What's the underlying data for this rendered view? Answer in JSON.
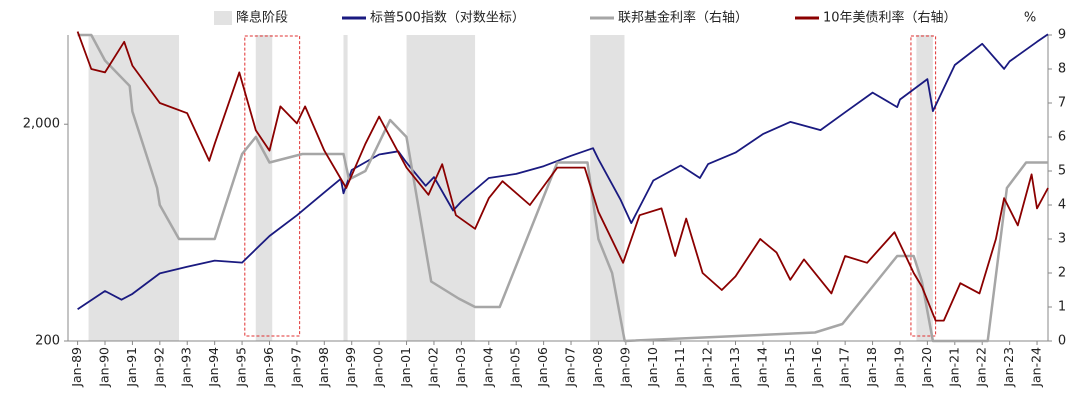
{
  "chart_data": {
    "type": "line",
    "xlim": [
      1988.65,
      2024.4
    ],
    "xticks": [
      {
        "value": 1989,
        "label": "Jan-89"
      },
      {
        "value": 1990,
        "label": "Jan-90"
      },
      {
        "value": 1991,
        "label": "Jan-91"
      },
      {
        "value": 1992,
        "label": "Jan-92"
      },
      {
        "value": 1993,
        "label": "Jan-93"
      },
      {
        "value": 1994,
        "label": "Jan-94"
      },
      {
        "value": 1995,
        "label": "Jan-95"
      },
      {
        "value": 1996,
        "label": "Jan-96"
      },
      {
        "value": 1997,
        "label": "Jan-97"
      },
      {
        "value": 1998,
        "label": "Jan-98"
      },
      {
        "value": 1999,
        "label": "Jan-99"
      },
      {
        "value": 2000,
        "label": "Jan-00"
      },
      {
        "value": 2001,
        "label": "Jan-01"
      },
      {
        "value": 2002,
        "label": "Jan-02"
      },
      {
        "value": 2003,
        "label": "Jan-03"
      },
      {
        "value": 2004,
        "label": "Jan-04"
      },
      {
        "value": 2005,
        "label": "Jan-05"
      },
      {
        "value": 2006,
        "label": "Jan-06"
      },
      {
        "value": 2007,
        "label": "Jan-07"
      },
      {
        "value": 2008,
        "label": "Jan-08"
      },
      {
        "value": 2009,
        "label": "Jan-09"
      },
      {
        "value": 2010,
        "label": "Jan-10"
      },
      {
        "value": 2011,
        "label": "Jan-11"
      },
      {
        "value": 2012,
        "label": "Jan-12"
      },
      {
        "value": 2013,
        "label": "Jan-13"
      },
      {
        "value": 2014,
        "label": "Jan-14"
      },
      {
        "value": 2015,
        "label": "Jan-15"
      },
      {
        "value": 2016,
        "label": "Jan-16"
      },
      {
        "value": 2017,
        "label": "Jan-17"
      },
      {
        "value": 2018,
        "label": "Jan-18"
      },
      {
        "value": 2019,
        "label": "Jan-19"
      },
      {
        "value": 2020,
        "label": "Jan-20"
      },
      {
        "value": 2021,
        "label": "Jan-21"
      },
      {
        "value": 2022,
        "label": "Jan-22"
      },
      {
        "value": 2023,
        "label": "Jan-23"
      },
      {
        "value": 2024,
        "label": "Jan-24"
      }
    ],
    "ylim": [
      200,
      5160
    ],
    "log_y": true,
    "yticks": [
      200,
      {
        "value": 2000,
        "label": "2,000"
      }
    ],
    "y2lim": [
      0,
      9
    ],
    "y2ticks": [
      0,
      1,
      2,
      3,
      4,
      5,
      6,
      7,
      8,
      9
    ],
    "y2_unit": "%",
    "legend_position": "top",
    "shaded": {
      "name": "降息阶段",
      "color": "#e2e2e2",
      "periods": [
        [
          1989.4,
          1992.7
        ],
        [
          1995.5,
          1996.1
        ],
        [
          1998.7,
          1998.85
        ],
        [
          2001.0,
          2003.5
        ],
        [
          2007.7,
          2008.95
        ],
        [
          2019.6,
          2020.2
        ]
      ]
    },
    "highlight_boxes": {
      "color": "#e03030",
      "periods": [
        [
          1995.1,
          1997.1
        ],
        [
          2019.4,
          2020.3
        ]
      ]
    },
    "series": [
      {
        "name": "标普500指数（对数坐标）",
        "color": "#1a1a80",
        "x": [
          1989.0,
          1990.0,
          1990.6,
          1991.0,
          1992.0,
          1993.0,
          1994.0,
          1995.0,
          1996.0,
          1997.0,
          1998.0,
          1998.6,
          1998.7,
          1999.0,
          2000.0,
          2000.7,
          2001.0,
          2001.7,
          2002.0,
          2002.7,
          2003.0,
          2004.0,
          2005.0,
          2006.0,
          2007.0,
          2007.8,
          2008.0,
          2008.8,
          2009.2,
          2010.0,
          2011.0,
          2011.7,
          2012.0,
          2013.0,
          2014.0,
          2015.0,
          2016.1,
          2017.0,
          2018.0,
          2018.9,
          2019.0,
          2020.0,
          2020.2,
          2021.0,
          2022.0,
          2022.8,
          2023.0,
          2024.0,
          2024.4
        ],
        "values": [
          280,
          340,
          310,
          330,
          410,
          440,
          470,
          460,
          610,
          760,
          970,
          1120,
          960,
          1230,
          1450,
          1500,
          1330,
          1040,
          1140,
          800,
          880,
          1130,
          1180,
          1280,
          1430,
          1550,
          1380,
          900,
          700,
          1100,
          1290,
          1130,
          1310,
          1480,
          1800,
          2050,
          1880,
          2270,
          2800,
          2400,
          2600,
          3230,
          2300,
          3750,
          4700,
          3600,
          3900,
          4800,
          5200
        ]
      },
      {
        "name": "联邦基金利率（右轴）",
        "color": "#a6a6a6",
        "axis": "y2",
        "x": [
          1989.0,
          1989.5,
          1990.0,
          1990.9,
          1991.0,
          1991.9,
          1992.0,
          1992.7,
          1994.0,
          1994.2,
          1995.0,
          1995.5,
          1996.0,
          1997.2,
          1998.7,
          1998.9,
          1999.5,
          2000.4,
          2001.0,
          2001.9,
          2002.9,
          2003.5,
          2004.4,
          2006.5,
          2007.6,
          2008.0,
          2008.5,
          2008.96,
          2015.9,
          2016.9,
          2017.9,
          2018.9,
          2019.5,
          2019.8,
          2020.2,
          2022.2,
          2022.9,
          2023.6,
          2024.4
        ],
        "values": [
          9.0,
          9.0,
          8.25,
          7.5,
          6.75,
          4.5,
          4.0,
          3.0,
          3.0,
          3.5,
          5.5,
          6.0,
          5.25,
          5.5,
          5.5,
          4.75,
          5.0,
          6.5,
          6.0,
          1.75,
          1.25,
          1.0,
          1.0,
          5.25,
          5.25,
          3.0,
          2.0,
          0,
          0.25,
          0.5,
          1.5,
          2.5,
          2.5,
          1.75,
          0,
          0,
          4.5,
          5.25,
          5.25
        ]
      },
      {
        "name": "10年美债利率（右轴）",
        "color": "#8b0000",
        "axis": "y2",
        "x": [
          1989.0,
          1989.5,
          1990.0,
          1990.7,
          1991.0,
          1992.0,
          1993.0,
          1993.8,
          1994.0,
          1994.9,
          1995.5,
          1996.0,
          1996.4,
          1997.0,
          1997.3,
          1998.0,
          1998.8,
          1999.5,
          2000.0,
          2001.0,
          2001.8,
          2002.3,
          2002.8,
          2003.5,
          2004.0,
          2004.5,
          2005.5,
          2006.5,
          2007.5,
          2008.0,
          2008.9,
          2009.5,
          2010.3,
          2010.8,
          2011.2,
          2011.8,
          2012.5,
          2013.0,
          2013.9,
          2014.5,
          2015.0,
          2015.5,
          2016.5,
          2017.0,
          2017.8,
          2018.8,
          2019.5,
          2019.8,
          2020.3,
          2020.6,
          2021.2,
          2021.9,
          2022.5,
          2022.8,
          2023.3,
          2023.8,
          2024.0,
          2024.4
        ],
        "values": [
          9.1,
          8.0,
          7.9,
          8.8,
          8.1,
          7.0,
          6.7,
          5.3,
          5.8,
          7.9,
          6.2,
          5.6,
          6.9,
          6.4,
          6.9,
          5.6,
          4.5,
          5.8,
          6.6,
          5.1,
          4.3,
          5.2,
          3.7,
          3.3,
          4.2,
          4.7,
          4.0,
          5.1,
          5.1,
          3.8,
          2.3,
          3.7,
          3.9,
          2.5,
          3.6,
          2.0,
          1.5,
          1.9,
          3.0,
          2.6,
          1.8,
          2.4,
          1.4,
          2.5,
          2.3,
          3.2,
          2.0,
          1.6,
          0.6,
          0.6,
          1.7,
          1.4,
          3.0,
          4.2,
          3.4,
          4.9,
          3.9,
          4.5
        ]
      }
    ]
  }
}
